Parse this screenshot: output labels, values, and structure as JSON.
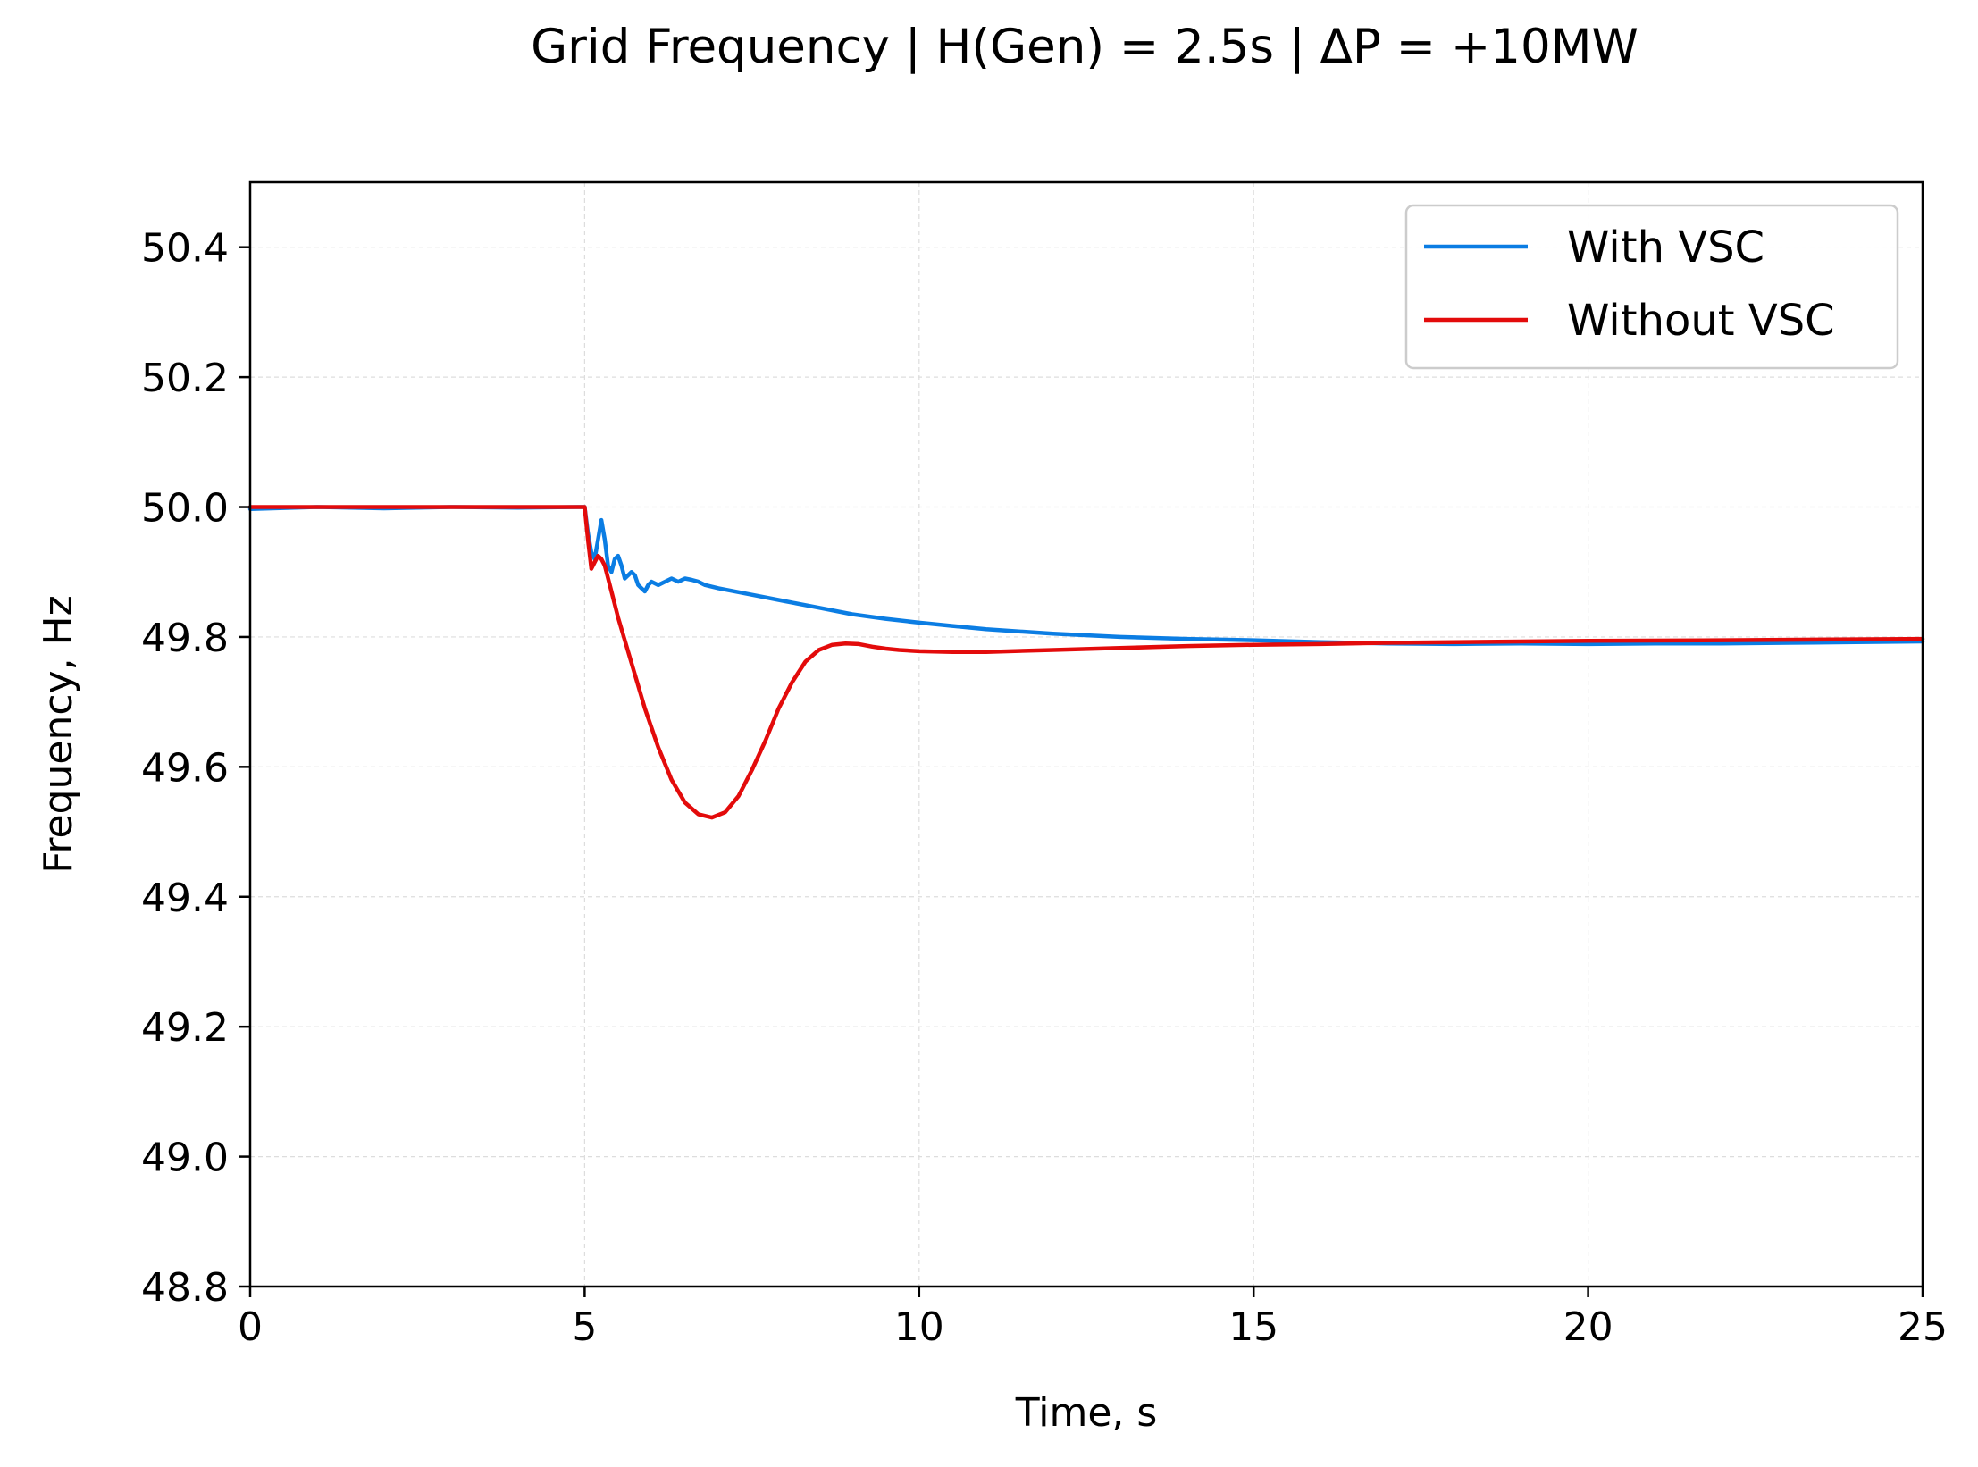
{
  "chart_data": {
    "type": "line",
    "title": "Grid Frequency  |  H(Gen) = 2.5s  |  ΔP = +10MW",
    "xlabel": "Time, s",
    "ylabel": "Frequency, Hz",
    "xlim": [
      0,
      25
    ],
    "ylim": [
      48.8,
      50.5
    ],
    "xticks": [
      0,
      5,
      10,
      15,
      20,
      25
    ],
    "xtick_labels": [
      "0",
      "5",
      "10",
      "15",
      "20",
      "25"
    ],
    "yticks": [
      48.8,
      49.0,
      49.2,
      49.4,
      49.6,
      49.8,
      50.0,
      50.2,
      50.4
    ],
    "ytick_labels": [
      "48.8",
      "49.0",
      "49.2",
      "49.4",
      "49.6",
      "49.8",
      "50.0",
      "50.2",
      "50.4"
    ],
    "grid": true,
    "legend_position": "top-right",
    "series": [
      {
        "name": "With VSC",
        "color": "#0b7de3",
        "x": [
          0,
          1,
          2,
          3,
          4,
          4.9,
          5.0,
          5.05,
          5.1,
          5.15,
          5.2,
          5.25,
          5.3,
          5.35,
          5.4,
          5.45,
          5.5,
          5.55,
          5.6,
          5.65,
          5.7,
          5.75,
          5.8,
          5.85,
          5.9,
          5.95,
          6.0,
          6.1,
          6.2,
          6.3,
          6.4,
          6.5,
          6.6,
          6.7,
          6.8,
          7.0,
          7.5,
          8.0,
          8.5,
          9.0,
          9.5,
          10.0,
          10.5,
          11.0,
          12.0,
          13.0,
          14.0,
          15.0,
          16.0,
          17.0,
          18.0,
          19.0,
          20.0,
          21.0,
          22.0,
          23.0,
          24.0,
          25.0
        ],
        "y": [
          49.997,
          50.0,
          49.998,
          50.0,
          49.999,
          50.0,
          50.0,
          49.96,
          49.93,
          49.92,
          49.95,
          49.98,
          49.95,
          49.91,
          49.9,
          49.92,
          49.925,
          49.91,
          49.89,
          49.895,
          49.9,
          49.895,
          49.88,
          49.875,
          49.87,
          49.88,
          49.885,
          49.88,
          49.885,
          49.89,
          49.885,
          49.89,
          49.888,
          49.885,
          49.88,
          49.875,
          49.865,
          49.855,
          49.845,
          49.835,
          49.828,
          49.822,
          49.817,
          49.812,
          49.805,
          49.8,
          49.797,
          49.795,
          49.792,
          49.79,
          49.789,
          49.79,
          49.789,
          49.79,
          49.79,
          49.791,
          49.792,
          49.793
        ]
      },
      {
        "name": "Without VSC",
        "color": "#e30b0b",
        "x": [
          0,
          1,
          2,
          3,
          4,
          4.95,
          5.0,
          5.05,
          5.1,
          5.15,
          5.2,
          5.25,
          5.3,
          5.4,
          5.5,
          5.7,
          5.9,
          6.1,
          6.3,
          6.5,
          6.7,
          6.9,
          7.1,
          7.3,
          7.5,
          7.7,
          7.9,
          8.1,
          8.3,
          8.5,
          8.7,
          8.9,
          9.1,
          9.3,
          9.5,
          9.7,
          10.0,
          10.5,
          11.0,
          12.0,
          13.0,
          14.0,
          15.0,
          16.0,
          17.0,
          18.0,
          19.0,
          20.0,
          22.0,
          25.0
        ],
        "y": [
          50.0,
          50.0,
          50.0,
          50.0,
          50.0,
          50.0,
          50.0,
          49.95,
          49.905,
          49.915,
          49.925,
          49.92,
          49.91,
          49.87,
          49.83,
          49.76,
          49.69,
          49.63,
          49.58,
          49.545,
          49.527,
          49.522,
          49.53,
          49.555,
          49.595,
          49.64,
          49.69,
          49.73,
          49.762,
          49.78,
          49.788,
          49.79,
          49.789,
          49.785,
          49.782,
          49.78,
          49.778,
          49.777,
          49.777,
          49.78,
          49.783,
          49.786,
          49.788,
          49.789,
          49.791,
          49.792,
          49.793,
          49.794,
          49.795,
          49.797
        ]
      }
    ]
  }
}
